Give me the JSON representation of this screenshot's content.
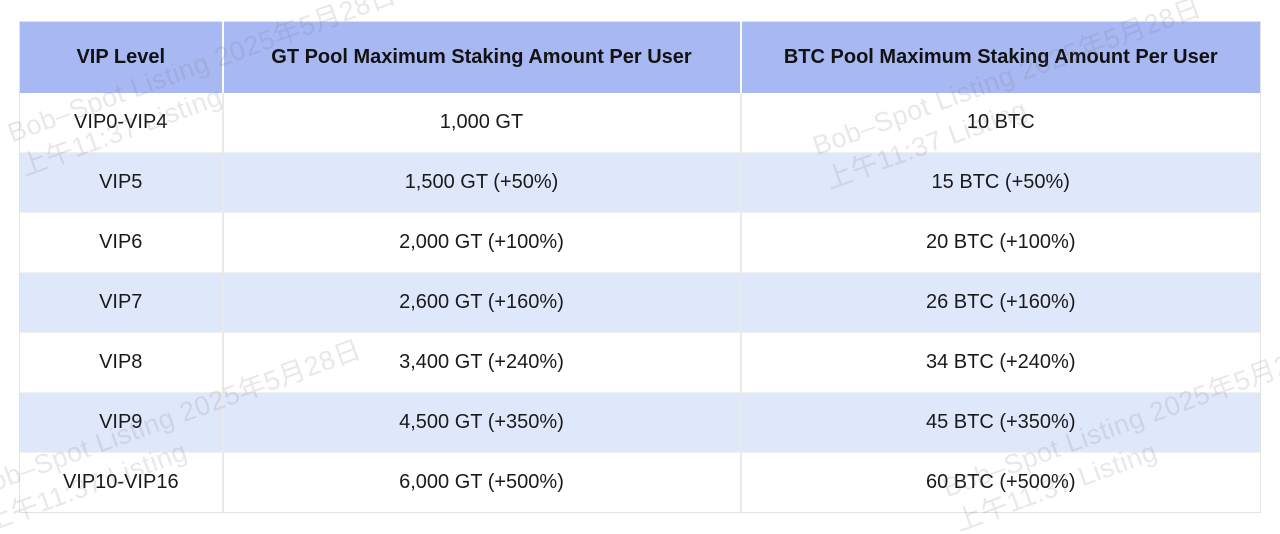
{
  "chart_data": {
    "type": "table",
    "title": "",
    "columns": [
      "VIP Level",
      "GT Pool Maximum Staking Amount Per User",
      "BTC Pool Maximum Staking Amount Per User"
    ],
    "rows": [
      [
        "VIP0-VIP4",
        "1,000 GT",
        "10 BTC"
      ],
      [
        "VIP5",
        "1,500 GT (+50%)",
        "15 BTC (+50%)"
      ],
      [
        "VIP6",
        "2,000 GT (+100%)",
        "20 BTC (+100%)"
      ],
      [
        "VIP7",
        "2,600 GT (+160%)",
        "26 BTC (+160%)"
      ],
      [
        "VIP8",
        "3,400 GT (+240%)",
        "34 BTC (+240%)"
      ],
      [
        "VIP9",
        "4,500 GT (+350%)",
        "45 BTC (+350%)"
      ],
      [
        "VIP10-VIP16",
        "6,000 GT (+500%)",
        "60 BTC (+500%)"
      ]
    ]
  },
  "watermark": {
    "line1": "Bob–Spot Listing 2025年5月28日",
    "line2": "上午11:37 Listing"
  },
  "colors": {
    "header_bg": "#a8b8f3",
    "row_alt_bg": "#dfe7fb",
    "row_bg": "#ffffff",
    "border": "#e2e2e2",
    "text": "#1a1a1a",
    "watermark": "rgba(110,110,110,0.16)"
  }
}
